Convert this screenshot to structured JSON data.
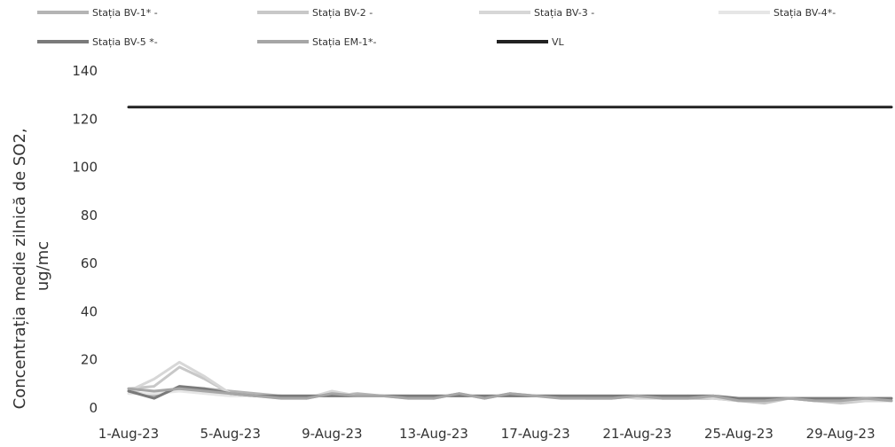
{
  "chart_data": {
    "type": "line",
    "title": "",
    "xlabel": "",
    "ylabel_line1": "Concentrația medie zilnică de SO2,",
    "ylabel_line2": "ug/mc",
    "ylim": [
      0,
      140
    ],
    "yticks": [
      "0",
      "20",
      "40",
      "60",
      "80",
      "100",
      "120",
      "140"
    ],
    "x": [
      "1-Aug-23",
      "2-Aug-23",
      "3-Aug-23",
      "4-Aug-23",
      "5-Aug-23",
      "6-Aug-23",
      "7-Aug-23",
      "8-Aug-23",
      "9-Aug-23",
      "10-Aug-23",
      "11-Aug-23",
      "12-Aug-23",
      "13-Aug-23",
      "14-Aug-23",
      "15-Aug-23",
      "16-Aug-23",
      "17-Aug-23",
      "18-Aug-23",
      "19-Aug-23",
      "20-Aug-23",
      "21-Aug-23",
      "22-Aug-23",
      "23-Aug-23",
      "24-Aug-23",
      "25-Aug-23",
      "26-Aug-23",
      "27-Aug-23",
      "28-Aug-23",
      "29-Aug-23",
      "30-Aug-23",
      "31-Aug-23"
    ],
    "xtick_labels": [
      "1-Aug-23",
      "5-Aug-23",
      "9-Aug-23",
      "13-Aug-23",
      "17-Aug-23",
      "21-Aug-23",
      "25-Aug-23",
      "29-Aug-23"
    ],
    "legend_position": "top",
    "series": [
      {
        "name": "Stația BV-1* -",
        "color": "#b4b4b4",
        "width": 3,
        "values": [
          7,
          5,
          8,
          8,
          7,
          6,
          5,
          5,
          5,
          6,
          5,
          5,
          5,
          5,
          5,
          5,
          5,
          5,
          4,
          4,
          5,
          4,
          4,
          4,
          3,
          3,
          4,
          3,
          3,
          4,
          3
        ]
      },
      {
        "name": "Stația BV-2 -",
        "color": "#c8c8c8",
        "width": 3,
        "values": [
          8,
          9,
          17,
          12,
          6,
          5,
          5,
          4,
          6,
          5,
          5,
          5,
          4,
          6,
          4,
          6,
          5,
          5,
          5,
          5,
          5,
          5,
          5,
          5,
          3,
          2,
          4,
          3,
          2,
          3,
          3
        ]
      },
      {
        "name": "Stația BV-3 -",
        "color": "#d7d7d7",
        "width": 3,
        "values": [
          7,
          12,
          19,
          13,
          6,
          5,
          4,
          4,
          7,
          5,
          5,
          4,
          4,
          6,
          4,
          6,
          5,
          5,
          5,
          5,
          4,
          4,
          5,
          4,
          3,
          3,
          4,
          3,
          3,
          3,
          3
        ]
      },
      {
        "name": "Stația BV-4*-",
        "color": "#e6e6e6",
        "width": 3,
        "values": [
          6,
          6,
          7,
          6,
          5,
          5,
          5,
          5,
          5,
          5,
          5,
          5,
          5,
          5,
          5,
          5,
          5,
          5,
          5,
          5,
          5,
          5,
          5,
          5,
          4,
          4,
          4,
          4,
          4,
          4,
          4
        ]
      },
      {
        "name": "Stația BV-5 *-",
        "color": "#7a7a7a",
        "width": 3,
        "values": [
          7,
          4,
          9,
          8,
          6,
          5,
          5,
          5,
          5,
          5,
          5,
          5,
          5,
          5,
          5,
          5,
          5,
          5,
          5,
          5,
          5,
          5,
          5,
          5,
          4,
          4,
          4,
          4,
          4,
          4,
          4
        ]
      },
      {
        "name": "Stația EM-1*-",
        "color": "#a6a6a6",
        "width": 3,
        "values": [
          8,
          7,
          8,
          7,
          6,
          5,
          4,
          4,
          6,
          5,
          5,
          4,
          4,
          6,
          4,
          6,
          5,
          4,
          4,
          4,
          5,
          4,
          4,
          5,
          3,
          3,
          4,
          3,
          3,
          4,
          3
        ]
      },
      {
        "name": "VL",
        "color": "#222222",
        "width": 3,
        "values": [
          125,
          125,
          125,
          125,
          125,
          125,
          125,
          125,
          125,
          125,
          125,
          125,
          125,
          125,
          125,
          125,
          125,
          125,
          125,
          125,
          125,
          125,
          125,
          125,
          125,
          125,
          125,
          125,
          125,
          125,
          125
        ]
      }
    ]
  }
}
